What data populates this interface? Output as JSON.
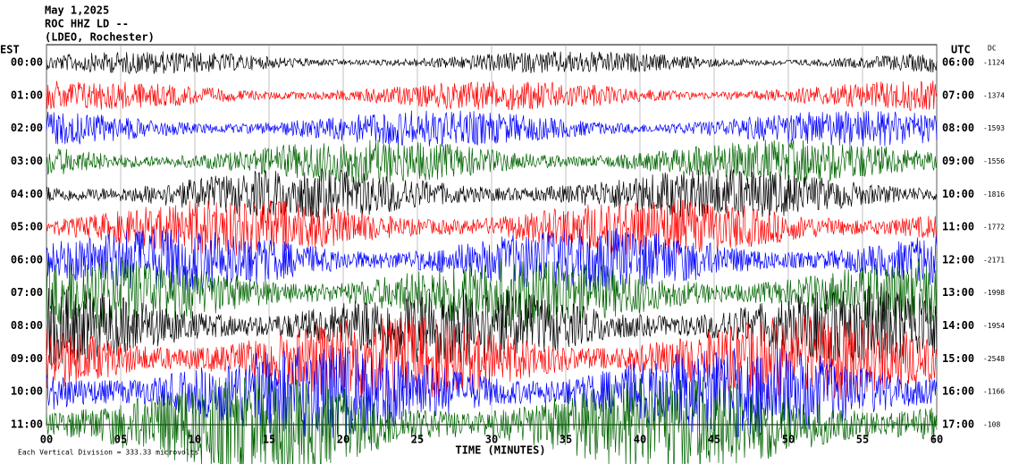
{
  "chart_data": {
    "type": "helicorder",
    "title": [
      "May 1,2025",
      "ROC HHZ LD --",
      "(LDEO, Rochester)"
    ],
    "left_axis_label": "EST",
    "right_axis_label": "UTC",
    "dc_label": "DC",
    "rows": [
      "00:00",
      "01:00",
      "02:00",
      "03:00",
      "04:00",
      "05:00",
      "06:00",
      "07:00",
      "08:00",
      "09:00",
      "10:00",
      "11:00"
    ],
    "right_rows": [
      "06:00",
      "07:00",
      "08:00",
      "09:00",
      "10:00",
      "11:00",
      "12:00",
      "13:00",
      "14:00",
      "15:00",
      "16:00",
      "17:00"
    ],
    "dc_values": [
      "-1124",
      "-1374",
      "-1593",
      "-1556",
      "-1816",
      "-1772",
      "-2171",
      "-1998",
      "-1954",
      "-2548",
      "-1166",
      "-108"
    ],
    "colors": [
      "#000000",
      "#ff0000",
      "#0000ff",
      "#006400"
    ],
    "xlim": [
      0,
      60
    ],
    "xticks": [
      {
        "value": 0,
        "label": "00"
      },
      {
        "value": 5,
        "label": "05"
      },
      10,
      15,
      20,
      25,
      30,
      35,
      40,
      45,
      50,
      55,
      60
    ],
    "x_label": "TIME (MINUTES)",
    "footnote": "Each Vertical Division = 333.33 microvolts"
  }
}
